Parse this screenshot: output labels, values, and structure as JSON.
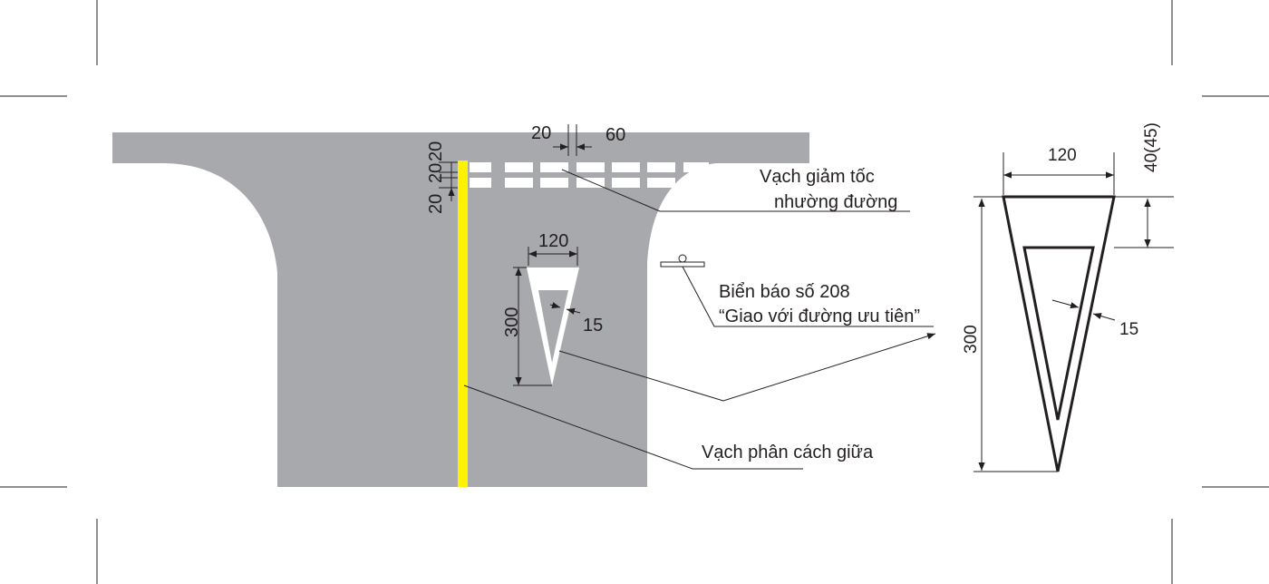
{
  "labels": {
    "giveway_line_title_1": "Vạch giảm tốc",
    "giveway_line_title_2": "nhường đường",
    "sign_label_1": "Biển báo số 208",
    "sign_label_2": "“Giao với đường ưu tiên”",
    "centerline_label": "Vạch phân cách giữa"
  },
  "dimensions": {
    "dash_gap": "20",
    "dash_length": "60",
    "line_width_top": "20",
    "line_gap_mid": "20",
    "line_width_bottom": "20",
    "triangle_width": "120",
    "triangle_height": "300",
    "triangle_border": "15",
    "detail_width": "120",
    "detail_offset": "40(45)",
    "detail_height": "300",
    "detail_border": "15"
  },
  "colors": {
    "road": "#a7a9ac",
    "centerline": "#fff200",
    "marking": "#ffffff",
    "ink": "#231f20"
  }
}
